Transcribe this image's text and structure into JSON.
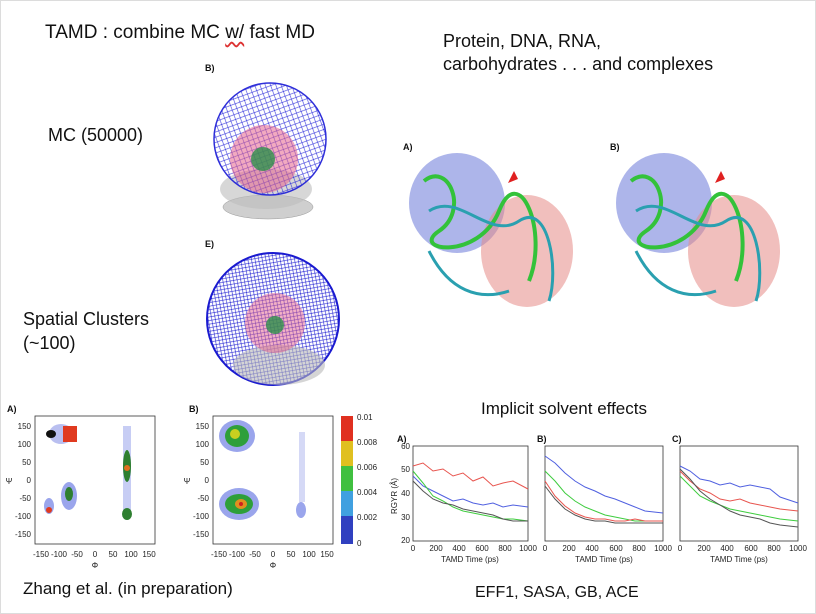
{
  "title": {
    "prefix": "TAMD : combine MC ",
    "wavy": "w/",
    "suffix": " fast MD"
  },
  "top_right_text": "Protein, DNA, RNA,\ncarbohydrates . . . and complexes",
  "mc_label": "MC (50000)",
  "spatial_label": "Spatial Clusters\n(~100)",
  "implicit_label": "Implicit solvent effects",
  "zhang_label": "Zhang et al. (in preparation)",
  "eff_label": "EFF1, SASA, GB, ACE",
  "sphere_panels": [
    "B)",
    "E)"
  ],
  "protein_panels": [
    "A)",
    "B)"
  ],
  "ramachandran": {
    "panels": [
      "A)",
      "B)"
    ],
    "xlabel": "Φ",
    "ylabel": "Ψ",
    "xticks": [
      "-150",
      "-100",
      "-50",
      "0",
      "50",
      "100",
      "150"
    ],
    "yticks": [
      "150",
      "100",
      "50",
      "0",
      "-50",
      "-100",
      "-150"
    ],
    "colorbar_ticks": [
      "0.01",
      "0.008",
      "0.006",
      "0.004",
      "0.002",
      "0"
    ]
  },
  "rgyr": {
    "panels": [
      "A)",
      "B)",
      "C)"
    ],
    "xlabel": "TAMD Time (ps)",
    "ylabel": "RGYR (Å)",
    "xticks": [
      "0",
      "200",
      "400",
      "600",
      "800",
      "1000"
    ],
    "yticks": [
      "60",
      "50",
      "40",
      "30",
      "20"
    ],
    "colors": {
      "red": "#e8554f",
      "blue": "#5060e0",
      "green": "#3fcc3f",
      "black": "#555555"
    }
  },
  "colors": {
    "sphere_blue": "#2323d8",
    "sphere_pink": "#e0507a",
    "protein_blue": "#6a78d8",
    "protein_red": "#e68a86",
    "ribbon_green": "#33c23a",
    "ribbon_cyan": "#2aa0b0",
    "arrow": "#e02020"
  }
}
